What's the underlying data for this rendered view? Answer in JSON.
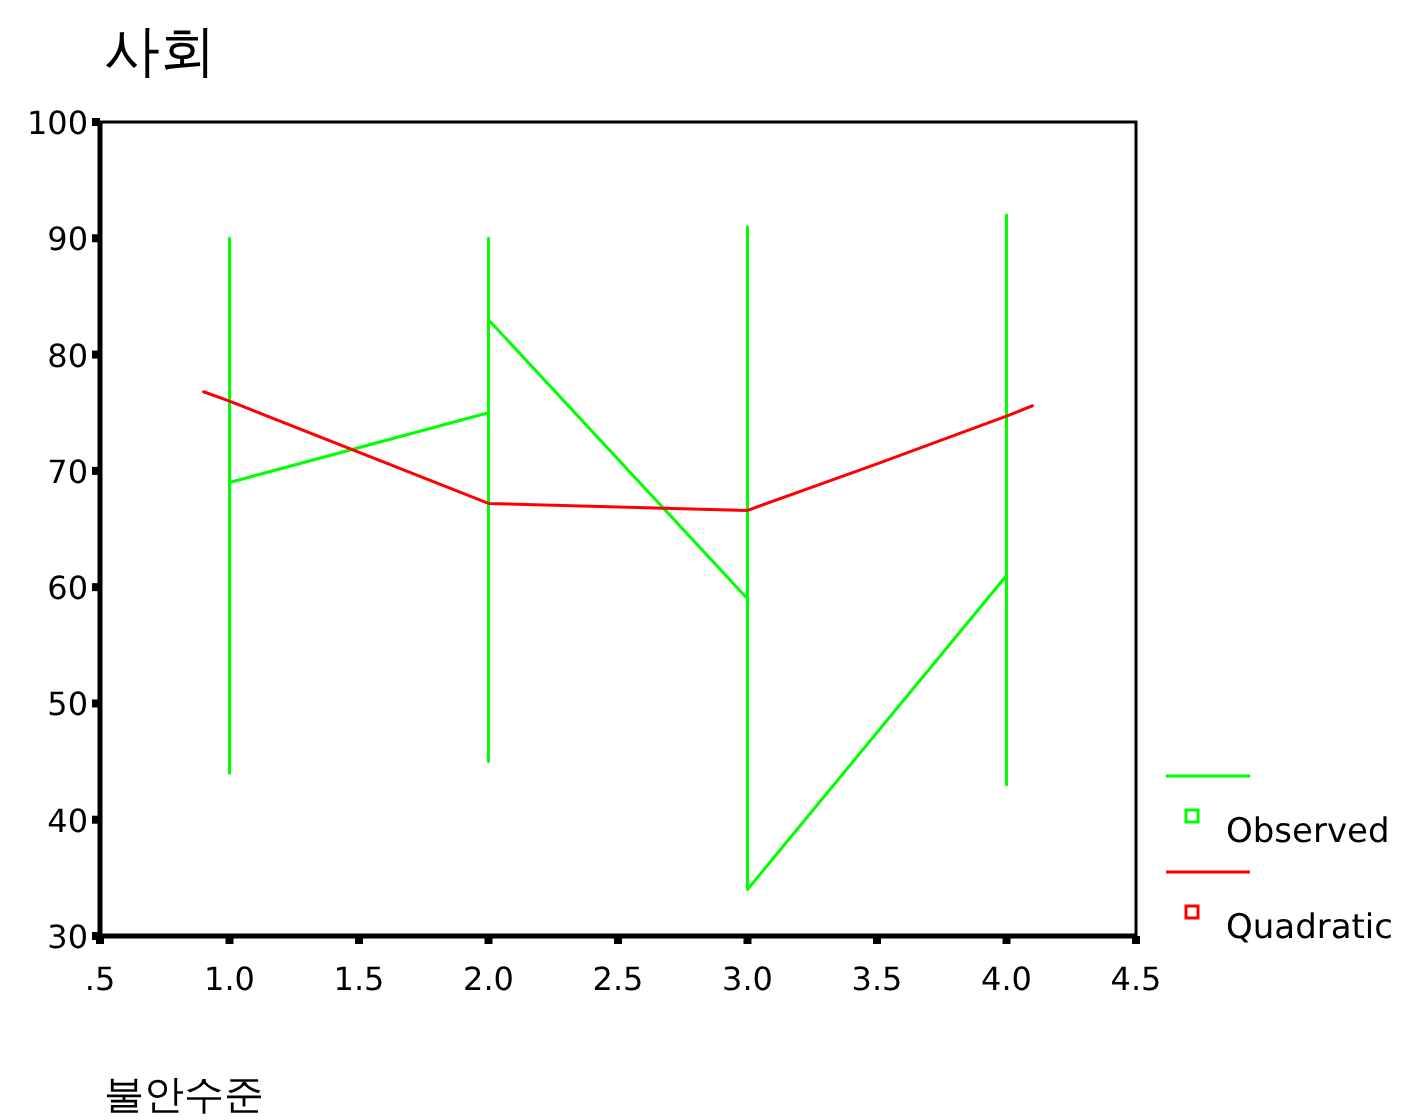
{
  "chart_data": {
    "type": "line",
    "title": "사회",
    "xlabel": "불안수준",
    "xlim": [
      0.5,
      4.5
    ],
    "xticks": [
      {
        "value": 0.5,
        "label": ".5"
      },
      {
        "value": 1,
        "label": "1.0"
      },
      {
        "value": 1.5,
        "label": "1.5"
      },
      {
        "value": 2,
        "label": "2.0"
      },
      {
        "value": 2.5,
        "label": "2.5"
      },
      {
        "value": 3,
        "label": "3.0"
      },
      {
        "value": 3.5,
        "label": "3.5"
      },
      {
        "value": 4,
        "label": "4.0"
      },
      {
        "value": 4.5,
        "label": "4.5"
      }
    ],
    "ylim": [
      30,
      100
    ],
    "yticks": [
      30,
      40,
      50,
      60,
      70,
      80,
      90,
      100
    ],
    "grid": false,
    "legend": "bottom right",
    "series": [
      {
        "name": "Observed",
        "color": "#00ff00",
        "x": [
          1,
          1,
          1,
          2,
          2,
          2,
          2,
          3,
          3,
          3,
          4,
          4,
          4
        ],
        "values": [
          44,
          90,
          69,
          75,
          45,
          90,
          83,
          59,
          91,
          34,
          61,
          43,
          92
        ]
      },
      {
        "name": "Quadratic",
        "color": "#ff0000",
        "x": [
          0.9,
          1,
          2,
          2.5,
          3,
          3.5,
          4,
          4.1
        ],
        "values": [
          76.8,
          76,
          67.2,
          66.9,
          66.6,
          70.6,
          74.7,
          75.6
        ]
      }
    ]
  }
}
